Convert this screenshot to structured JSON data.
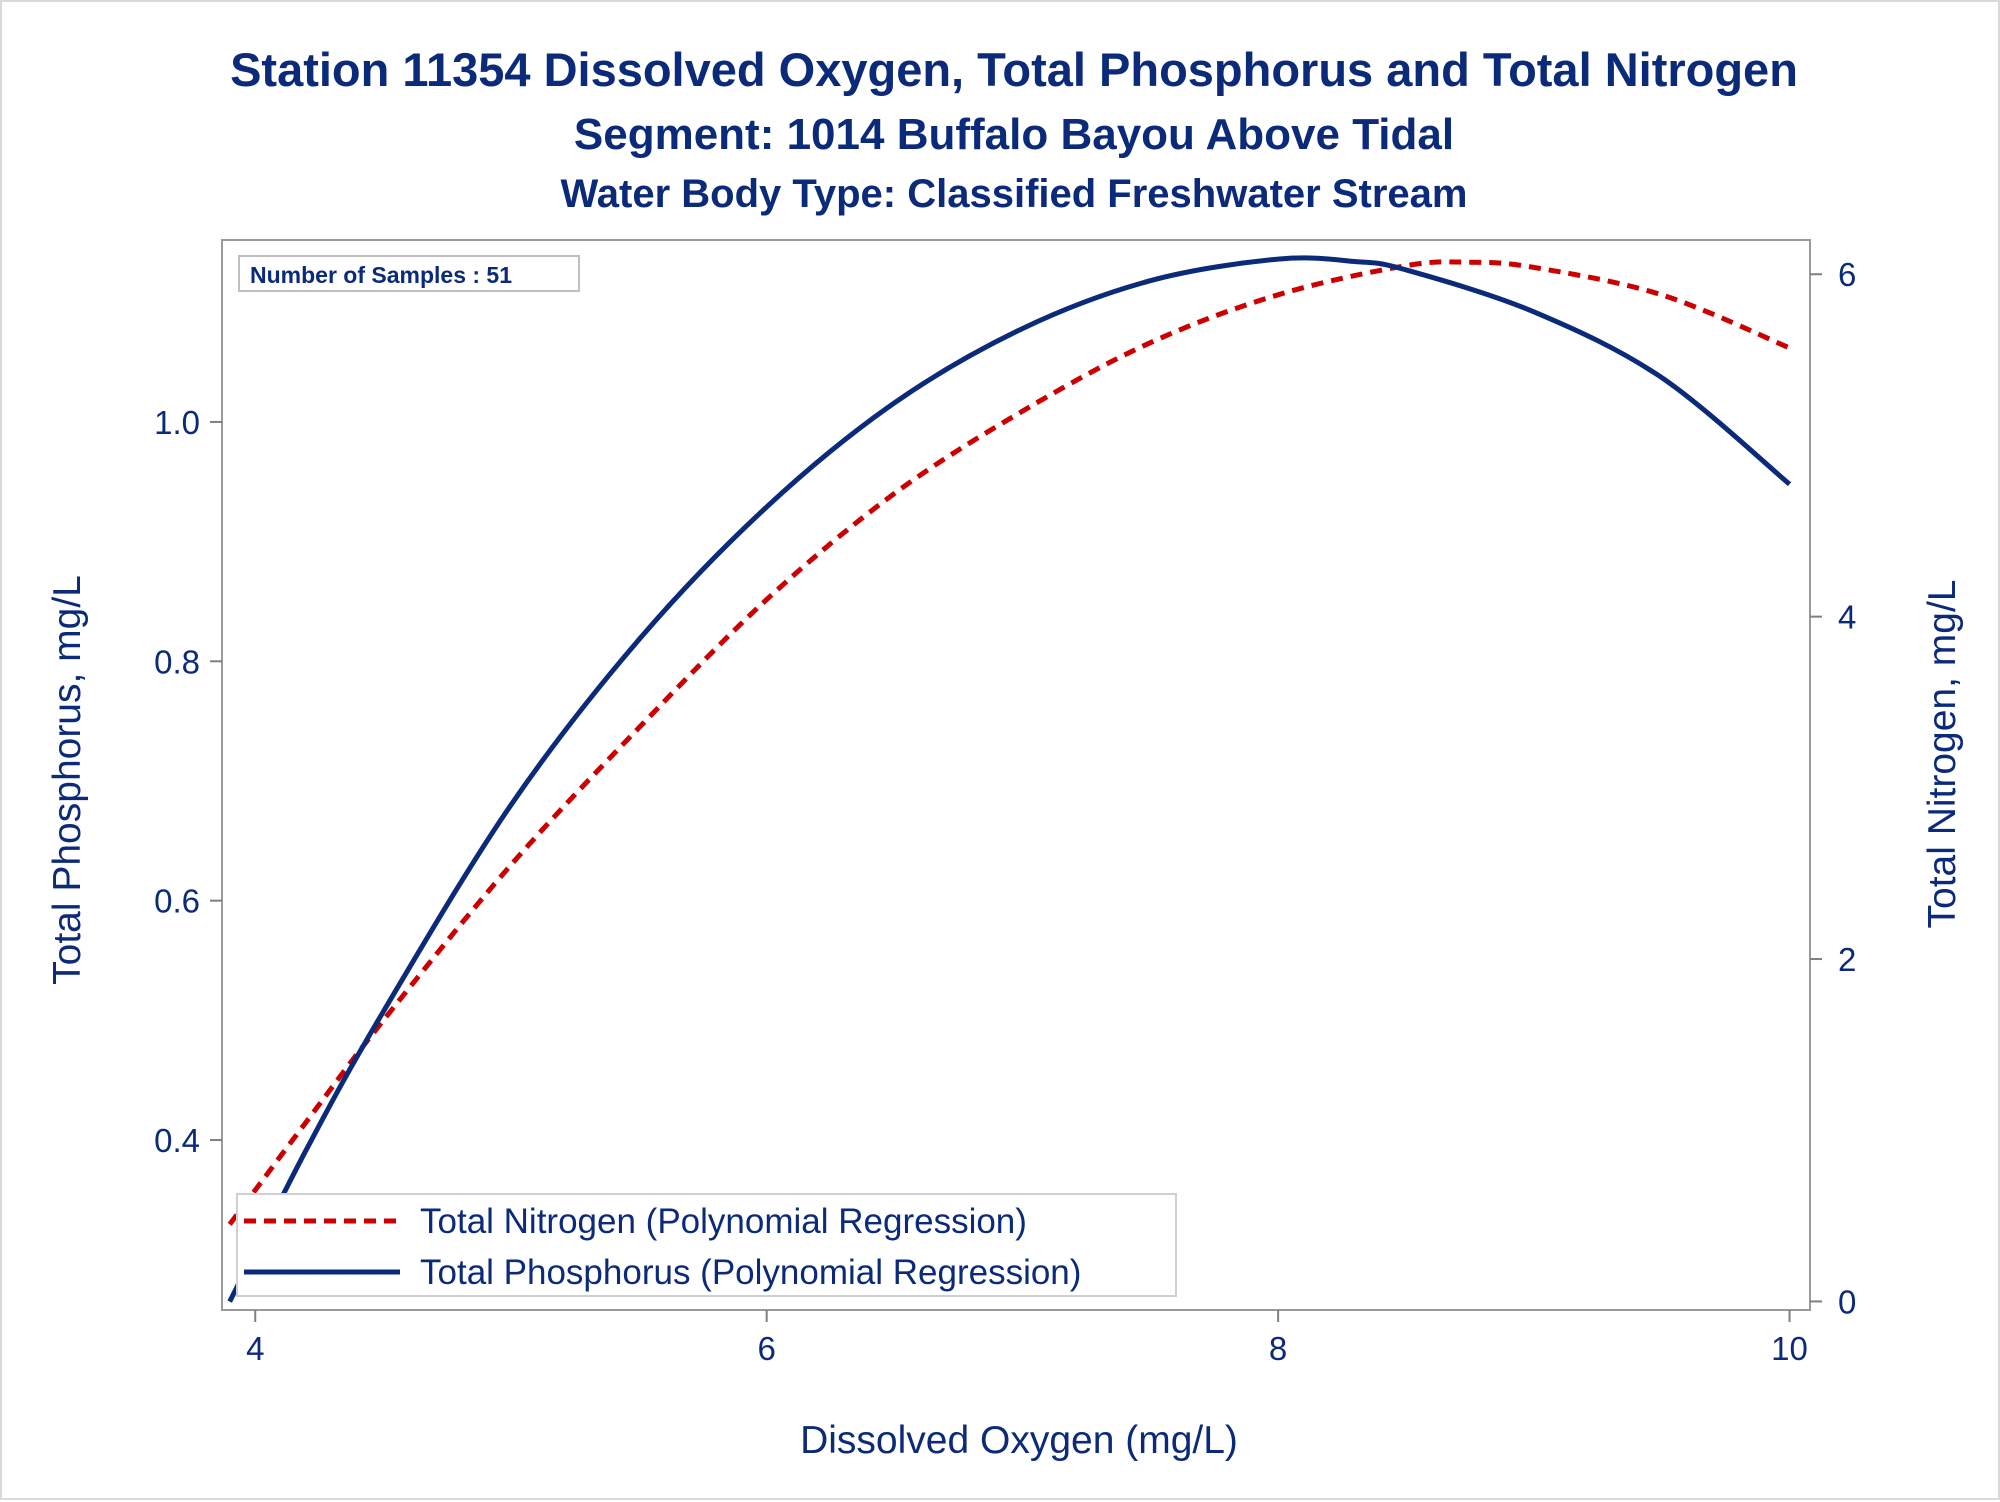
{
  "titles": {
    "line1": "Station 11354  Dissolved Oxygen, Total Phosphorus and Total Nitrogen",
    "line2": "Segment: 1014  Buffalo Bayou Above Tidal",
    "line3": "Water Body Type: Classified Freshwater Stream"
  },
  "inset": {
    "samples_label": "Number of Samples : 51"
  },
  "colors": {
    "title": "#0b2a7a",
    "nitrogen": "#cc0000",
    "phosphorus": "#0b2a7a",
    "frame": "#9a9a9a"
  },
  "chart_data": {
    "type": "line",
    "xlabel": "Dissolved Oxygen (mg/L)",
    "ylabel": "Total Phosphorus, mg/L",
    "y2label": "Total Nitrogen, mg/L",
    "xlim": [
      3.87,
      10.08
    ],
    "ylim": [
      0.258,
      1.152
    ],
    "y2lim": [
      -0.05,
      6.2
    ],
    "xticks": [
      "4",
      "6",
      "8",
      "10"
    ],
    "xtick_values": [
      4,
      6,
      8,
      10
    ],
    "yticks": [
      "0.4",
      "0.6",
      "0.8",
      "1.0"
    ],
    "ytick_values": [
      0.4,
      0.6,
      0.8,
      1.0
    ],
    "y2ticks": [
      "0",
      "2",
      "4",
      "6"
    ],
    "y2tick_values": [
      0,
      2,
      4,
      6
    ],
    "grid": false,
    "legend_position": "bottom-left",
    "series": [
      {
        "name": "Total Nitrogen (Polynomial Regression)",
        "axis": "right",
        "style": "dashed",
        "x": [
          3.9,
          4.2,
          4.5,
          5.0,
          5.5,
          6.0,
          6.5,
          7.0,
          7.5,
          8.0,
          8.5,
          8.75,
          9.0,
          9.5,
          10.0
        ],
        "y": [
          0.45,
          1.05,
          1.64,
          2.55,
          3.35,
          4.1,
          4.72,
          5.2,
          5.6,
          5.88,
          6.05,
          6.07,
          6.04,
          5.88,
          5.57
        ]
      },
      {
        "name": "Total Phosphorus (Polynomial Regression)",
        "axis": "left",
        "style": "solid",
        "x": [
          3.9,
          4.2,
          4.5,
          5.0,
          5.5,
          6.0,
          6.5,
          7.0,
          7.5,
          8.0,
          8.3,
          8.5,
          9.0,
          9.5,
          10.0
        ],
        "y": [
          0.265,
          0.392,
          0.507,
          0.68,
          0.818,
          0.929,
          1.016,
          1.078,
          1.118,
          1.136,
          1.134,
          1.127,
          1.092,
          1.037,
          0.948
        ]
      }
    ]
  }
}
